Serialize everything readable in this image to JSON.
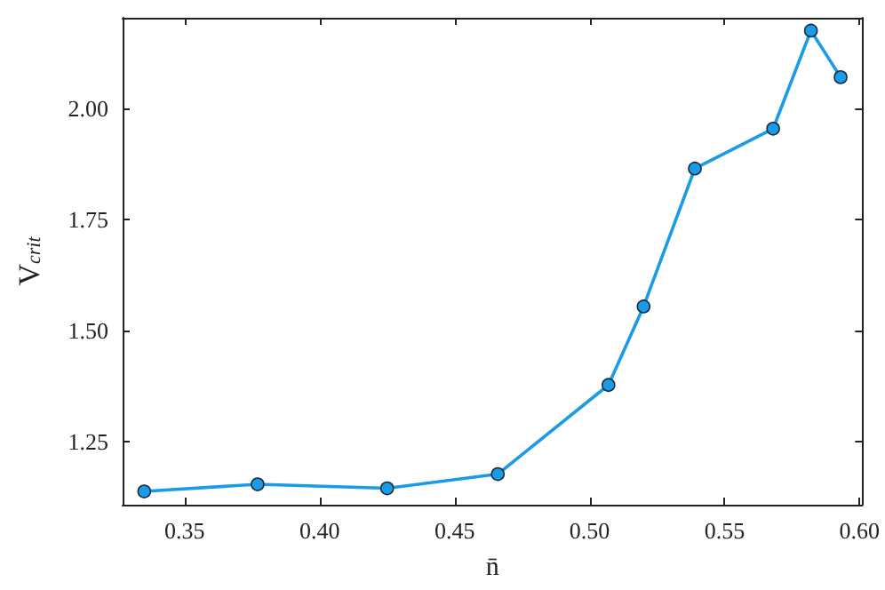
{
  "chart_data": {
    "type": "line",
    "xlabel": "n̄",
    "ylabel": "V$_{crit}$",
    "x": [
      0.335,
      0.377,
      0.425,
      0.466,
      0.507,
      0.52,
      0.539,
      0.568,
      0.582,
      0.593
    ],
    "series": [
      {
        "color": "#1a9be8",
        "values": [
          1.137,
          1.153,
          1.144,
          1.176,
          1.377,
          1.554,
          1.865,
          1.955,
          2.176,
          2.071
        ]
      }
    ],
    "xlim": [
      0.327,
      0.601
    ],
    "xticks": [
      {
        "value": 0.35,
        "label": "0.35"
      },
      {
        "value": 0.4,
        "label": "0.40"
      },
      {
        "value": 0.45,
        "label": "0.45"
      },
      {
        "value": 0.5,
        "label": "0.50"
      },
      {
        "value": 0.55,
        "label": "0.55"
      },
      {
        "value": 0.6,
        "label": "0.60"
      }
    ],
    "ylim": [
      1.107,
      2.205
    ],
    "yticks": [
      {
        "value": 1.25,
        "label": "1.25"
      },
      {
        "value": 1.5,
        "label": "1.50"
      },
      {
        "value": 1.75,
        "label": "1.75"
      },
      {
        "value": 2,
        "label": "2.00"
      }
    ],
    "grid": false,
    "marker": "circle",
    "line_style": "solid"
  }
}
